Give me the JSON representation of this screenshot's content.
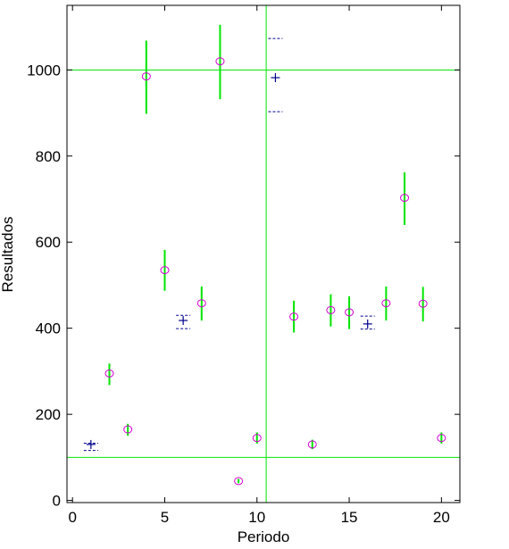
{
  "chart_data": {
    "type": "scatter",
    "title": "",
    "xlabel": "Periodo",
    "ylabel": "Resultados",
    "xlim": [
      -0.3,
      21.0
    ],
    "ylim": [
      -5,
      1150
    ],
    "x_ticks": [
      0,
      5,
      10,
      15,
      20
    ],
    "y_ticks": [
      0,
      200,
      400,
      600,
      800,
      1000
    ],
    "grid": false,
    "legend": "none",
    "reference_lines": {
      "horizontal": [
        1000,
        100
      ],
      "vertical": [
        10.5
      ]
    },
    "colors": {
      "marker": "#d400d4",
      "error_bar": "#00e600",
      "reference_line": "#00e600",
      "secondary_marker": "#00008b"
    },
    "points": [
      {
        "x": 2,
        "y": 295,
        "err_low": 268,
        "err_high": 318
      },
      {
        "x": 3,
        "y": 165,
        "err_low": 150,
        "err_high": 178
      },
      {
        "x": 4,
        "y": 985,
        "err_low": 898,
        "err_high": 1068
      },
      {
        "x": 5,
        "y": 535,
        "err_low": 487,
        "err_high": 582
      },
      {
        "x": 7,
        "y": 458,
        "err_low": 418,
        "err_high": 497
      },
      {
        "x": 8,
        "y": 1020,
        "err_low": 932,
        "err_high": 1105
      },
      {
        "x": 9,
        "y": 45,
        "err_low": 40,
        "err_high": 50
      },
      {
        "x": 10,
        "y": 145,
        "err_low": 132,
        "err_high": 158
      },
      {
        "x": 12,
        "y": 427,
        "err_low": 390,
        "err_high": 464
      },
      {
        "x": 13,
        "y": 130,
        "err_low": 119,
        "err_high": 141
      },
      {
        "x": 14,
        "y": 442,
        "err_low": 404,
        "err_high": 479
      },
      {
        "x": 15,
        "y": 437,
        "err_low": 398,
        "err_high": 474
      },
      {
        "x": 17,
        "y": 458,
        "err_low": 418,
        "err_high": 497
      },
      {
        "x": 18,
        "y": 703,
        "err_low": 640,
        "err_high": 762
      },
      {
        "x": 19,
        "y": 457,
        "err_low": 416,
        "err_high": 496
      },
      {
        "x": 20,
        "y": 145,
        "err_low": 132,
        "err_high": 158
      }
    ],
    "secondary_points": [
      {
        "x": 1,
        "y": 130,
        "low": 116,
        "high": 133
      },
      {
        "x": 6,
        "y": 418,
        "low": 399,
        "high": 430
      },
      {
        "x": 11,
        "y": 982,
        "low": 903,
        "high": 1073
      },
      {
        "x": 16,
        "y": 410,
        "low": 398,
        "high": 428
      }
    ]
  }
}
